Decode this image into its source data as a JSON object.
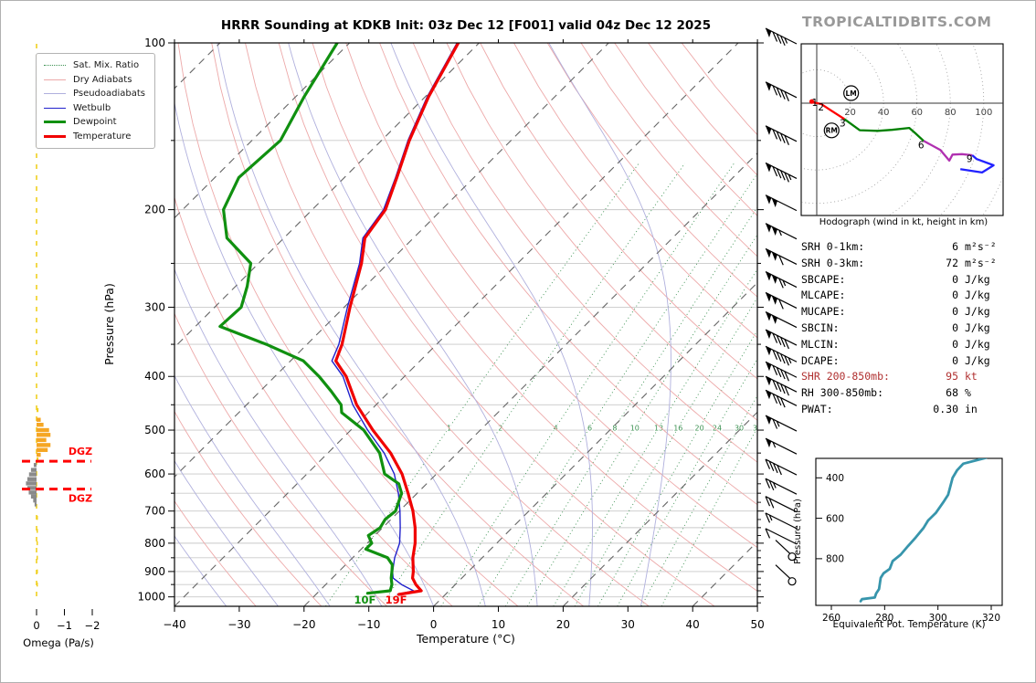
{
  "header": {
    "title": "HRRR Sounding at KDKB Init: 03z Dec 12 [F001] valid 04z Dec 12 2025",
    "watermark": "TROPICALTIDBITS.COM"
  },
  "skewt": {
    "xlabel": "Temperature (°C)",
    "ylabel": "Pressure (hPa)",
    "x_ticks": [
      -40,
      -30,
      -20,
      -10,
      0,
      10,
      20,
      30,
      40,
      50
    ],
    "p_ticks": [
      100,
      200,
      300,
      400,
      500,
      600,
      700,
      800,
      900,
      1000
    ],
    "surface_temp_label": "19F",
    "surface_dewp_label": "10F",
    "mixing_ratio_labels": [
      "1",
      "2",
      "4",
      "6",
      "8",
      "10",
      "13",
      "16",
      "20",
      "24",
      "30",
      "36"
    ]
  },
  "legend": {
    "items": [
      {
        "label": "Sat. Mix. Ratio",
        "style": "dotted",
        "width": 1.5,
        "color": "#3c9152"
      },
      {
        "label": "Dry Adiabats",
        "style": "solid",
        "width": 1.2,
        "color": "#eda9a9"
      },
      {
        "label": "Pseudoadiabats",
        "style": "solid",
        "width": 1.2,
        "color": "#b0b0dd"
      },
      {
        "label": "Wetbulb",
        "style": "solid",
        "width": 1.6,
        "color": "#2020cc"
      },
      {
        "label": "Dewpoint",
        "style": "solid",
        "width": 3,
        "color": "#109010"
      },
      {
        "label": "Temperature",
        "style": "solid",
        "width": 3,
        "color": "#f00000"
      }
    ]
  },
  "omega": {
    "xlabel": "Omega (Pa/s)",
    "tick_labels": [
      "0",
      "−1",
      "−2"
    ],
    "tick_values": [
      0,
      -1,
      -2
    ],
    "dgz_label": "DGZ",
    "dgz_pressures": [
      569,
      639
    ]
  },
  "hodograph": {
    "caption": "Hodograph (wind in kt, height in km)",
    "ring_labels": [
      "20",
      "40",
      "60",
      "80",
      "100"
    ],
    "ring_step_kt": 20,
    "marker_left": "LM",
    "marker_right": "RM",
    "marker_left_uv": [
      20.6,
      6.0
    ],
    "marker_right_uv": [
      8.9,
      -16.3
    ],
    "height_labels": [
      {
        "text": "1",
        "u": -1.2,
        "v": 0.5
      },
      {
        "text": "2",
        "u": 2.6,
        "v": -2.2
      },
      {
        "text": "3",
        "u": 15.5,
        "v": -11.8
      },
      {
        "text": "6",
        "u": 62.5,
        "v": -25.0
      },
      {
        "text": "9",
        "u": 91.5,
        "v": -33.2
      }
    ]
  },
  "stats": {
    "rows": [
      {
        "label": "SRH 0-1km:",
        "value": "6",
        "unit": "m²s⁻²",
        "highlight": false
      },
      {
        "label": "SRH 0-3km:",
        "value": "72",
        "unit": "m²s⁻²",
        "highlight": false
      },
      {
        "label": "SBCAPE:",
        "value": "0",
        "unit": "J/kg",
        "highlight": false
      },
      {
        "label": "MLCAPE:",
        "value": "0",
        "unit": "J/kg",
        "highlight": false
      },
      {
        "label": "MUCAPE:",
        "value": "0",
        "unit": "J/kg",
        "highlight": false
      },
      {
        "label": "SBCIN:",
        "value": "0",
        "unit": "J/kg",
        "highlight": false
      },
      {
        "label": "MLCIN:",
        "value": "0",
        "unit": "J/kg",
        "highlight": false
      },
      {
        "label": "DCAPE:",
        "value": "0",
        "unit": "J/kg",
        "highlight": false
      },
      {
        "label": "SHR 200-850mb:",
        "value": "95",
        "unit": "kt",
        "highlight": true
      },
      {
        "label": "RH 300-850mb:",
        "value": "68",
        "unit": "%",
        "highlight": false
      },
      {
        "label": "PWAT:",
        "value": "0.30",
        "unit": "in",
        "highlight": false
      }
    ]
  },
  "theta_e": {
    "xlabel": "Equivalent Pot. Temperature (K)",
    "ylabel": "Pressure (hPa)",
    "x_ticks": [
      260,
      280,
      300,
      320
    ],
    "y_ticks": [
      400,
      600,
      800
    ]
  },
  "colors": {
    "temperature": "#f00000",
    "dewpoint": "#109010",
    "wetbulb": "#2020cc",
    "dry_adiabat": "#eda9a9",
    "pseudoadiabat": "#b0b0dd",
    "mixing_ratio": "#3c9152",
    "isotherm": "#666666",
    "grid": "#c9c9c9",
    "theta_e": "#3795ac",
    "omega_ascent": "#f5a623",
    "omega_weak": "#f0d020",
    "omega_descent": "#8a8a8a",
    "dgz": "#ff0000",
    "shr_text": "#b03030",
    "watermark": "#999999",
    "hodo_red": "#ff0000",
    "hodo_green": "#008000",
    "hodo_purple": "#b030b0",
    "hodo_blue": "#2222ff"
  },
  "chart_data": [
    {
      "type": "line",
      "name": "skewt_sounding",
      "title": "HRRR Sounding at KDKB Init: 03z Dec 12 [F001] valid 04z Dec 12 2025",
      "xlabel": "Temperature (°C)",
      "ylabel": "Pressure (hPa)",
      "xlim": [
        -40,
        50
      ],
      "ylim": [
        1040,
        100
      ],
      "surface_temperature_F": 19,
      "surface_dewpoint_F": 10,
      "series": [
        {
          "name": "temperature_C",
          "pressure_hPa": [
            100,
            125,
            150,
            175,
            200,
            225,
            250,
            300,
            350,
            375,
            400,
            450,
            500,
            550,
            600,
            650,
            700,
            750,
            800,
            850,
            900,
            925,
            950,
            975,
            990
          ],
          "values": [
            -83.2,
            -79.5,
            -75.7,
            -71.9,
            -68.7,
            -67.5,
            -64.1,
            -59.1,
            -54.6,
            -53.0,
            -49.0,
            -43.0,
            -36.6,
            -30.3,
            -25.3,
            -21.4,
            -17.9,
            -15.0,
            -12.6,
            -10.7,
            -8.5,
            -7.6,
            -6.1,
            -4.3,
            -7.2
          ]
        },
        {
          "name": "wetbulb_C",
          "pressure_hPa": [
            100,
            125,
            150,
            175,
            200,
            225,
            250,
            300,
            350,
            375,
            400,
            450,
            500,
            550,
            600,
            650,
            700,
            750,
            800,
            850,
            900,
            925,
            950,
            975,
            990
          ],
          "values": [
            -83.4,
            -79.7,
            -75.9,
            -72.1,
            -69.0,
            -67.8,
            -64.4,
            -59.5,
            -55.1,
            -53.6,
            -49.5,
            -43.6,
            -37.4,
            -31.3,
            -26.5,
            -22.9,
            -19.9,
            -17.3,
            -15.0,
            -13.5,
            -11.7,
            -10.6,
            -8.3,
            -5.5,
            -7.4
          ]
        },
        {
          "name": "dewpoint_C",
          "pressure_hPa": [
            100,
            125,
            150,
            175,
            200,
            225,
            250,
            275,
            300,
            325,
            350,
            375,
            400,
            425,
            450,
            465,
            500,
            550,
            600,
            625,
            650,
            700,
            725,
            750,
            775,
            800,
            820,
            850,
            875,
            900,
            925,
            950,
            975,
            985
          ],
          "values": [
            -101.9,
            -98.7,
            -95.6,
            -96.3,
            -93.7,
            -88.8,
            -81.2,
            -78.2,
            -75.9,
            -76.2,
            -66.3,
            -58.0,
            -53.2,
            -49.1,
            -45.4,
            -44.1,
            -38.0,
            -32.0,
            -28.0,
            -24.3,
            -22.4,
            -20.6,
            -20.9,
            -20.4,
            -21.0,
            -19.3,
            -19.3,
            -14.6,
            -12.8,
            -11.8,
            -10.9,
            -9.8,
            -9.1,
            -12.2
          ]
        }
      ]
    },
    {
      "type": "line",
      "name": "hodograph_kt",
      "segments": [
        {
          "color_key": "hodo_red",
          "km_range": "0-3",
          "points": [
            [
              -3,
              1
            ],
            [
              -2,
              0.5
            ],
            [
              2.7,
              -0.5
            ],
            [
              8,
              -4
            ],
            [
              16.6,
              -9.5
            ]
          ]
        },
        {
          "color_key": "hodo_green",
          "km_range": "3-6",
          "points": [
            [
              16.6,
              -9.5
            ],
            [
              25.7,
              -16.2
            ],
            [
              36.6,
              -16.6
            ],
            [
              45,
              -16
            ],
            [
              55.4,
              -14.8
            ],
            [
              59,
              -18
            ],
            [
              64,
              -22.6
            ]
          ]
        },
        {
          "color_key": "hodo_purple",
          "km_range": "6-9",
          "points": [
            [
              64,
              -22.6
            ],
            [
              74,
              -28
            ],
            [
              79.4,
              -34.4
            ],
            [
              81.3,
              -30.8
            ],
            [
              87,
              -30.5
            ],
            [
              93.1,
              -31.2
            ]
          ]
        },
        {
          "color_key": "hodo_blue",
          "km_range": "9+",
          "points": [
            [
              93.1,
              -31.2
            ],
            [
              95.8,
              -33.5
            ],
            [
              105.9,
              -37.2
            ],
            [
              99,
              -41.5
            ],
            [
              86,
              -39.5
            ]
          ]
        }
      ]
    },
    {
      "type": "line",
      "name": "theta_e_profile",
      "xlabel": "Equivalent Pot. Temperature (K)",
      "ylabel": "Pressure (hPa)",
      "points_thetaE_p": [
        [
          271,
          1010
        ],
        [
          271.5,
          1000
        ],
        [
          276.3,
          992
        ],
        [
          276.8,
          972
        ],
        [
          277.9,
          950
        ],
        [
          278.5,
          895
        ],
        [
          279.6,
          872
        ],
        [
          281.9,
          850
        ],
        [
          283.0,
          812
        ],
        [
          286.0,
          780
        ],
        [
          288.8,
          737
        ],
        [
          291.7,
          694
        ],
        [
          294.6,
          648
        ],
        [
          296.3,
          611
        ],
        [
          299.2,
          574
        ],
        [
          302.0,
          521
        ],
        [
          303.8,
          484
        ],
        [
          304.5,
          450
        ],
        [
          305.5,
          400
        ],
        [
          307.2,
          362
        ],
        [
          309.5,
          330
        ],
        [
          318.0,
          301
        ]
      ]
    },
    {
      "type": "bar",
      "name": "omega_Pa_s",
      "bars": [
        {
          "p": 460,
          "v": -0.07,
          "color_key": "omega_weak"
        },
        {
          "p": 479,
          "v": -0.15,
          "color_key": "omega_ascent"
        },
        {
          "p": 489,
          "v": -0.25,
          "color_key": "omega_ascent"
        },
        {
          "p": 500,
          "v": -0.45,
          "color_key": "omega_ascent"
        },
        {
          "p": 510,
          "v": -0.5,
          "color_key": "omega_ascent"
        },
        {
          "p": 521,
          "v": -0.35,
          "color_key": "omega_ascent"
        },
        {
          "p": 532,
          "v": -0.5,
          "color_key": "omega_ascent"
        },
        {
          "p": 543,
          "v": -0.4,
          "color_key": "omega_ascent"
        },
        {
          "p": 554,
          "v": -0.15,
          "color_key": "omega_ascent"
        },
        {
          "p": 565,
          "v": -0.07,
          "color_key": "omega_weak"
        },
        {
          "p": 578,
          "v": 0.1,
          "color_key": "omega_descent"
        },
        {
          "p": 590,
          "v": 0.2,
          "color_key": "omega_descent"
        },
        {
          "p": 601,
          "v": 0.27,
          "color_key": "omega_descent"
        },
        {
          "p": 613,
          "v": 0.33,
          "color_key": "omega_descent"
        },
        {
          "p": 624,
          "v": 0.38,
          "color_key": "omega_descent"
        },
        {
          "p": 636,
          "v": 0.33,
          "color_key": "omega_descent"
        },
        {
          "p": 648,
          "v": 0.28,
          "color_key": "omega_descent"
        },
        {
          "p": 659,
          "v": 0.2,
          "color_key": "omega_descent"
        },
        {
          "p": 670,
          "v": 0.12,
          "color_key": "omega_descent"
        },
        {
          "p": 681,
          "v": 0.07,
          "color_key": "omega_descent"
        },
        {
          "p": 720,
          "v": -0.05,
          "color_key": "omega_weak"
        },
        {
          "p": 760,
          "v": -0.05,
          "color_key": "omega_weak"
        },
        {
          "p": 800,
          "v": -0.04,
          "color_key": "omega_weak"
        },
        {
          "p": 850,
          "v": -0.04,
          "color_key": "omega_weak"
        },
        {
          "p": 900,
          "v": -0.03,
          "color_key": "omega_weak"
        },
        {
          "p": 950,
          "v": -0.03,
          "color_key": "omega_weak"
        }
      ]
    },
    {
      "type": "wind_barbs",
      "name": "wind_profile_kt",
      "levels": [
        {
          "p": 100,
          "speed_kt": 85
        },
        {
          "p": 125,
          "speed_kt": 90
        },
        {
          "p": 150,
          "speed_kt": 90
        },
        {
          "p": 175,
          "speed_kt": 95
        },
        {
          "p": 200,
          "speed_kt": 100
        },
        {
          "p": 225,
          "speed_kt": 105
        },
        {
          "p": 250,
          "speed_kt": 110
        },
        {
          "p": 275,
          "speed_kt": 115
        },
        {
          "p": 300,
          "speed_kt": 110
        },
        {
          "p": 325,
          "speed_kt": 100
        },
        {
          "p": 350,
          "speed_kt": 90
        },
        {
          "p": 375,
          "speed_kt": 95
        },
        {
          "p": 400,
          "speed_kt": 90
        },
        {
          "p": 425,
          "speed_kt": 90
        },
        {
          "p": 450,
          "speed_kt": 80
        },
        {
          "p": 500,
          "speed_kt": 65
        },
        {
          "p": 550,
          "speed_kt": 55
        },
        {
          "p": 600,
          "speed_kt": 40
        },
        {
          "p": 650,
          "speed_kt": 25
        },
        {
          "p": 700,
          "speed_kt": 20
        },
        {
          "p": 750,
          "speed_kt": 15
        },
        {
          "p": 800,
          "speed_kt": 10
        },
        {
          "p": 830,
          "speed_kt": 0
        },
        {
          "p": 920,
          "speed_kt": 0
        }
      ]
    }
  ]
}
